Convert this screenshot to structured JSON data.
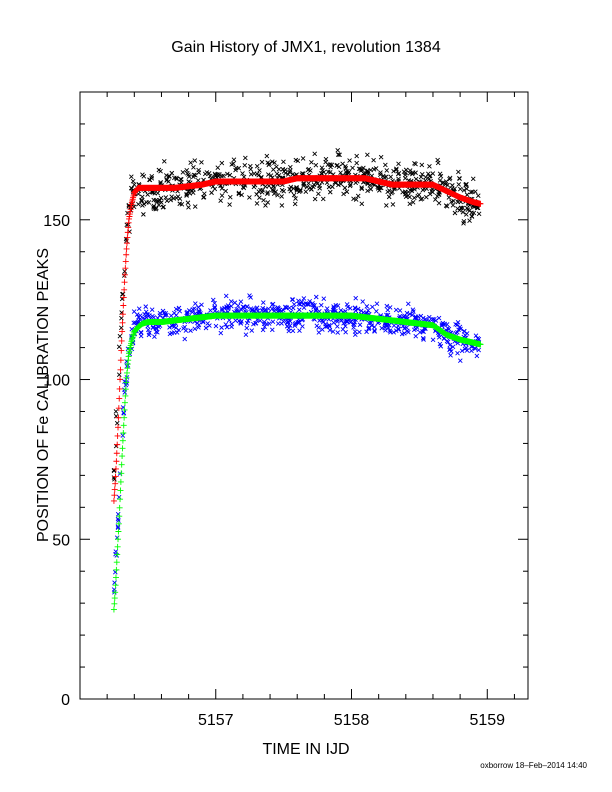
{
  "chart_data": {
    "type": "scatter",
    "title": "Gain History of JMX1, revolution 1384",
    "xlabel": "TIME IN IJD",
    "ylabel": "POSITION OF Fe CALIBRATION PEAKS",
    "footer": "oxborrow 18–Feb–2014 14:40",
    "xlim": [
      5156.0,
      5159.3
    ],
    "ylim": [
      0,
      190
    ],
    "x_ticks": [
      "5157",
      "5158",
      "5159"
    ],
    "y_ticks": [
      "0",
      "50",
      "100",
      "150"
    ],
    "x_tick_values": [
      5157,
      5158,
      5159
    ],
    "y_tick_values": [
      0,
      50,
      100,
      150
    ],
    "grid": false,
    "legend": "none",
    "series": [
      {
        "marker": "x",
        "color": "#000000",
        "x": [
          5156.25,
          5156.26,
          5156.27,
          5156.28,
          5156.29,
          5156.3,
          5156.31,
          5156.32,
          5156.33,
          5156.34,
          5156.35,
          5156.36,
          5156.38,
          5156.4,
          5156.43,
          5156.46,
          5156.5,
          5156.55,
          5156.6,
          5156.7,
          5156.8,
          5156.9,
          5157.0,
          5157.1,
          5157.2,
          5157.3,
          5157.4,
          5157.5,
          5157.6,
          5157.7,
          5157.8,
          5157.9,
          5158.0,
          5158.1,
          5158.2,
          5158.3,
          5158.4,
          5158.5,
          5158.6,
          5158.7,
          5158.8,
          5158.9,
          5158.95
        ],
        "y": [
          72,
          80,
          88,
          96,
          105,
          114,
          122,
          130,
          137,
          143,
          148,
          152,
          156,
          159,
          160,
          160,
          160,
          160,
          160,
          160,
          160.5,
          161,
          162,
          162,
          162,
          162,
          162,
          162,
          163,
          163,
          163,
          163,
          163,
          163,
          162,
          161,
          161,
          161,
          161,
          159,
          157,
          155.5,
          155
        ],
        "noise": 4
      },
      {
        "marker": "+",
        "color": "#ff0000",
        "x": [
          5156.25,
          5156.26,
          5156.27,
          5156.28,
          5156.29,
          5156.3,
          5156.31,
          5156.32,
          5156.33,
          5156.34,
          5156.35,
          5156.36,
          5156.38,
          5156.4,
          5156.43,
          5156.46,
          5156.5,
          5156.55,
          5156.6,
          5156.7,
          5156.8,
          5156.9,
          5157.0,
          5157.1,
          5157.2,
          5157.3,
          5157.4,
          5157.5,
          5157.6,
          5157.7,
          5157.8,
          5157.9,
          5158.0,
          5158.1,
          5158.2,
          5158.3,
          5158.4,
          5158.5,
          5158.6,
          5158.7,
          5158.8,
          5158.9,
          5158.95
        ],
        "y": [
          62,
          68,
          76,
          85,
          95,
          105,
          115,
          124,
          132,
          139,
          145,
          150,
          155,
          158.5,
          160,
          160,
          160,
          160,
          160,
          160,
          160.5,
          161,
          162,
          162,
          162,
          162,
          162,
          162,
          163,
          163,
          163,
          163,
          163,
          163,
          162,
          161,
          161,
          161,
          161,
          159,
          157,
          155.5,
          155
        ],
        "noise": 0
      },
      {
        "marker": "x",
        "color": "#0000ff",
        "x": [
          5156.25,
          5156.26,
          5156.27,
          5156.28,
          5156.29,
          5156.3,
          5156.31,
          5156.32,
          5156.33,
          5156.34,
          5156.35,
          5156.36,
          5156.38,
          5156.4,
          5156.43,
          5156.46,
          5156.5,
          5156.55,
          5156.6,
          5156.7,
          5156.8,
          5156.9,
          5157.0,
          5157.1,
          5157.2,
          5157.3,
          5157.4,
          5157.5,
          5157.6,
          5157.7,
          5157.8,
          5157.9,
          5158.0,
          5158.1,
          5158.2,
          5158.3,
          5158.4,
          5158.5,
          5158.6,
          5158.7,
          5158.8,
          5158.9,
          5158.95
        ],
        "y": [
          33,
          40,
          48,
          56,
          64,
          72,
          80,
          88,
          95,
          101,
          106,
          110,
          113,
          115.5,
          117,
          118,
          118,
          118,
          118,
          118.5,
          119,
          119.5,
          120,
          120,
          120,
          120,
          120,
          120,
          120,
          120,
          120,
          120,
          120,
          119.5,
          119,
          118.5,
          118,
          117.5,
          117,
          114,
          112.5,
          111.5,
          111
        ],
        "noise": 3
      },
      {
        "marker": "+",
        "color": "#00ff00",
        "x": [
          5156.25,
          5156.26,
          5156.27,
          5156.28,
          5156.29,
          5156.3,
          5156.31,
          5156.32,
          5156.33,
          5156.34,
          5156.35,
          5156.36,
          5156.38,
          5156.4,
          5156.43,
          5156.46,
          5156.5,
          5156.55,
          5156.6,
          5156.7,
          5156.8,
          5156.9,
          5157.0,
          5157.1,
          5157.2,
          5157.3,
          5157.4,
          5157.5,
          5157.6,
          5157.7,
          5157.8,
          5157.9,
          5158.0,
          5158.1,
          5158.2,
          5158.3,
          5158.4,
          5158.5,
          5158.6,
          5158.7,
          5158.8,
          5158.9,
          5158.95
        ],
        "y": [
          28,
          34,
          42,
          50,
          58,
          67,
          76,
          84,
          92,
          99,
          104,
          108,
          112,
          115,
          116.5,
          117.5,
          118,
          118,
          118,
          118.5,
          119,
          119.5,
          120,
          120,
          120,
          120,
          120,
          120,
          120,
          120,
          120,
          120,
          120,
          119.5,
          119,
          118.5,
          118,
          117.5,
          117,
          114,
          112.5,
          111.5,
          111
        ],
        "noise": 0
      }
    ]
  }
}
